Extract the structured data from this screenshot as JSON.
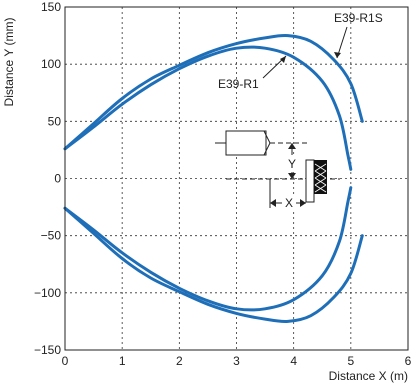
{
  "chart_data": {
    "type": "line",
    "title": "",
    "xlabel": "Distance X (m)",
    "ylabel": "Distance Y (mm)",
    "xlim": [
      0,
      6
    ],
    "ylim": [
      -150,
      150
    ],
    "x_ticks": [
      "0",
      "1",
      "2",
      "3",
      "4",
      "5",
      "6"
    ],
    "y_ticks": [
      "150",
      "100",
      "50",
      "0",
      "−50",
      "−100",
      "−150"
    ],
    "grid": true,
    "line_color": "#1f6fb8",
    "series": [
      {
        "name": "E39-R1",
        "upper": [
          [
            0,
            26
          ],
          [
            0.5,
            45
          ],
          [
            1,
            65
          ],
          [
            1.5,
            82
          ],
          [
            2,
            96
          ],
          [
            2.5,
            107
          ],
          [
            3,
            114
          ],
          [
            3.5,
            114
          ],
          [
            4,
            106
          ],
          [
            4.5,
            85
          ],
          [
            4.8,
            55
          ],
          [
            4.95,
            20
          ],
          [
            5.0,
            8
          ]
        ],
        "lower": [
          [
            0,
            -26
          ],
          [
            0.5,
            -45
          ],
          [
            1,
            -65
          ],
          [
            1.5,
            -82
          ],
          [
            2,
            -96
          ],
          [
            2.5,
            -107
          ],
          [
            3,
            -114
          ],
          [
            3.5,
            -114
          ],
          [
            4,
            -106
          ],
          [
            4.5,
            -85
          ],
          [
            4.8,
            -55
          ],
          [
            4.95,
            -20
          ],
          [
            5.0,
            -8
          ]
        ]
      },
      {
        "name": "E39-R1S",
        "upper": [
          [
            0,
            26
          ],
          [
            0.5,
            48
          ],
          [
            1,
            70
          ],
          [
            1.5,
            87
          ],
          [
            2,
            99
          ],
          [
            2.5,
            110
          ],
          [
            3,
            118
          ],
          [
            3.5,
            123
          ],
          [
            3.9,
            125
          ],
          [
            4.3,
            120
          ],
          [
            4.7,
            104
          ],
          [
            5.0,
            83
          ],
          [
            5.2,
            50
          ]
        ],
        "lower": [
          [
            0,
            -26
          ],
          [
            0.5,
            -48
          ],
          [
            1,
            -70
          ],
          [
            1.5,
            -87
          ],
          [
            2,
            -99
          ],
          [
            2.5,
            -110
          ],
          [
            3,
            -118
          ],
          [
            3.5,
            -123
          ],
          [
            3.9,
            -125
          ],
          [
            4.3,
            -120
          ],
          [
            4.7,
            -104
          ],
          [
            5.0,
            -83
          ],
          [
            5.2,
            -50
          ]
        ]
      }
    ],
    "annotations": {
      "label_r1": "E39-R1",
      "label_r1s": "E39-R1S",
      "dim_x": "X",
      "dim_y": "Y"
    }
  }
}
